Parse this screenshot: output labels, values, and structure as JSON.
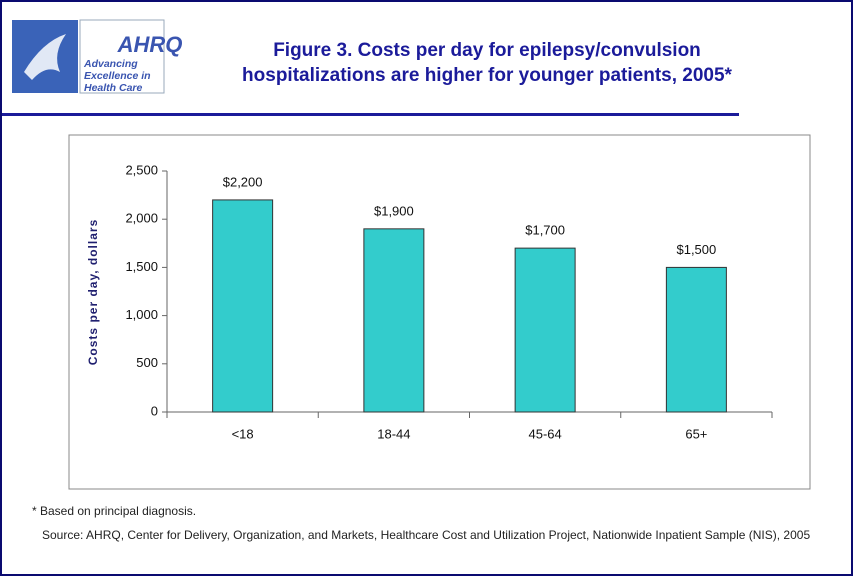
{
  "logo": {
    "name": "AHRQ",
    "tagline": "Advancing Excellence in Health Care"
  },
  "chart_data": {
    "type": "bar",
    "title": "Figure 3.  Costs per day for epilepsy/convulsion hospitalizations are higher for younger patients, 2005*",
    "y_label": "Costs per day, dollars",
    "categories": [
      "<18",
      "18-44",
      "45-64",
      "65+"
    ],
    "values": [
      2200,
      1900,
      1700,
      1500
    ],
    "value_labels": [
      "$2,200",
      "$1,900",
      "$1,700",
      "$1,500"
    ],
    "color": "#33cccc",
    "ylim": [
      0,
      2500
    ],
    "yticks": [
      0,
      500,
      {
        "value": 1000,
        "label": "1,000"
      },
      {
        "value": 1500,
        "label": "1,500"
      },
      {
        "value": 2000,
        "label": "2,000"
      },
      {
        "value": 2500,
        "label": "2,500"
      }
    ],
    "grid": false,
    "footnote": "* Based on principal diagnosis.",
    "source": "Source: AHRQ, Center for Delivery, Organization, and Markets, Healthcare Cost and Utilization Project, Nationwide Inpatient Sample (NIS), 2005"
  }
}
